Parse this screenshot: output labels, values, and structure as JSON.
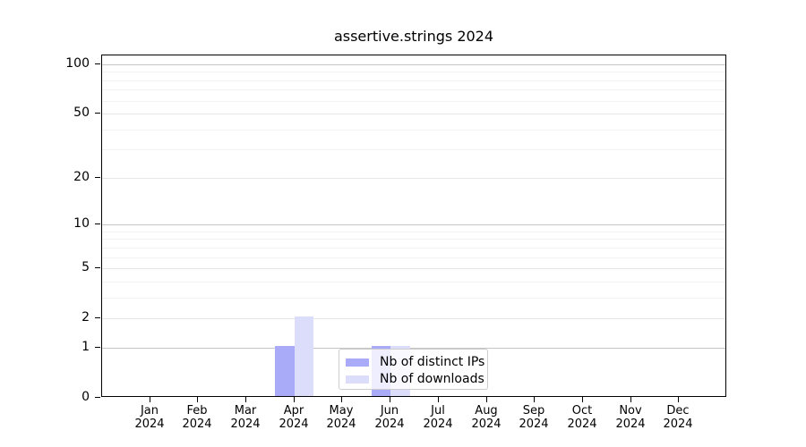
{
  "figure": {
    "title": "assertive.strings 2024"
  },
  "chart_data": {
    "type": "bar",
    "title": "assertive.strings 2024",
    "categories": [
      "Jan 2024",
      "Feb 2024",
      "Mar 2024",
      "Apr 2024",
      "May 2024",
      "Jun 2024",
      "Jul 2024",
      "Aug 2024",
      "Sep 2024",
      "Oct 2024",
      "Nov 2024",
      "Dec 2024"
    ],
    "series": [
      {
        "name": "Nb of distinct IPs",
        "color": "#a9aaf8",
        "values": [
          0,
          0,
          0,
          1,
          0,
          1,
          0,
          0,
          0,
          0,
          0,
          0
        ]
      },
      {
        "name": "Nb of downloads",
        "color": "#dcddfa",
        "values": [
          0,
          0,
          0,
          2,
          0,
          1,
          0,
          0,
          0,
          0,
          0,
          0
        ]
      }
    ],
    "yscale": "log1p",
    "ylim": [
      0,
      113
    ],
    "yticks_major": [
      0,
      1,
      2,
      5,
      10,
      20,
      50,
      100
    ],
    "yticks_minor": [
      3,
      4,
      6,
      7,
      8,
      9,
      30,
      40,
      60,
      70,
      80,
      90
    ],
    "grid": true,
    "legend_position": "lower-center-inside",
    "xlabel": "",
    "ylabel": ""
  },
  "colors": {
    "axis": "#000000",
    "grid_decade": "#c6c6c6",
    "grid_major": "#e6e6e6",
    "grid_minor": "#f2f2f2",
    "legend_border": "#cccccc",
    "background": "#ffffff"
  }
}
